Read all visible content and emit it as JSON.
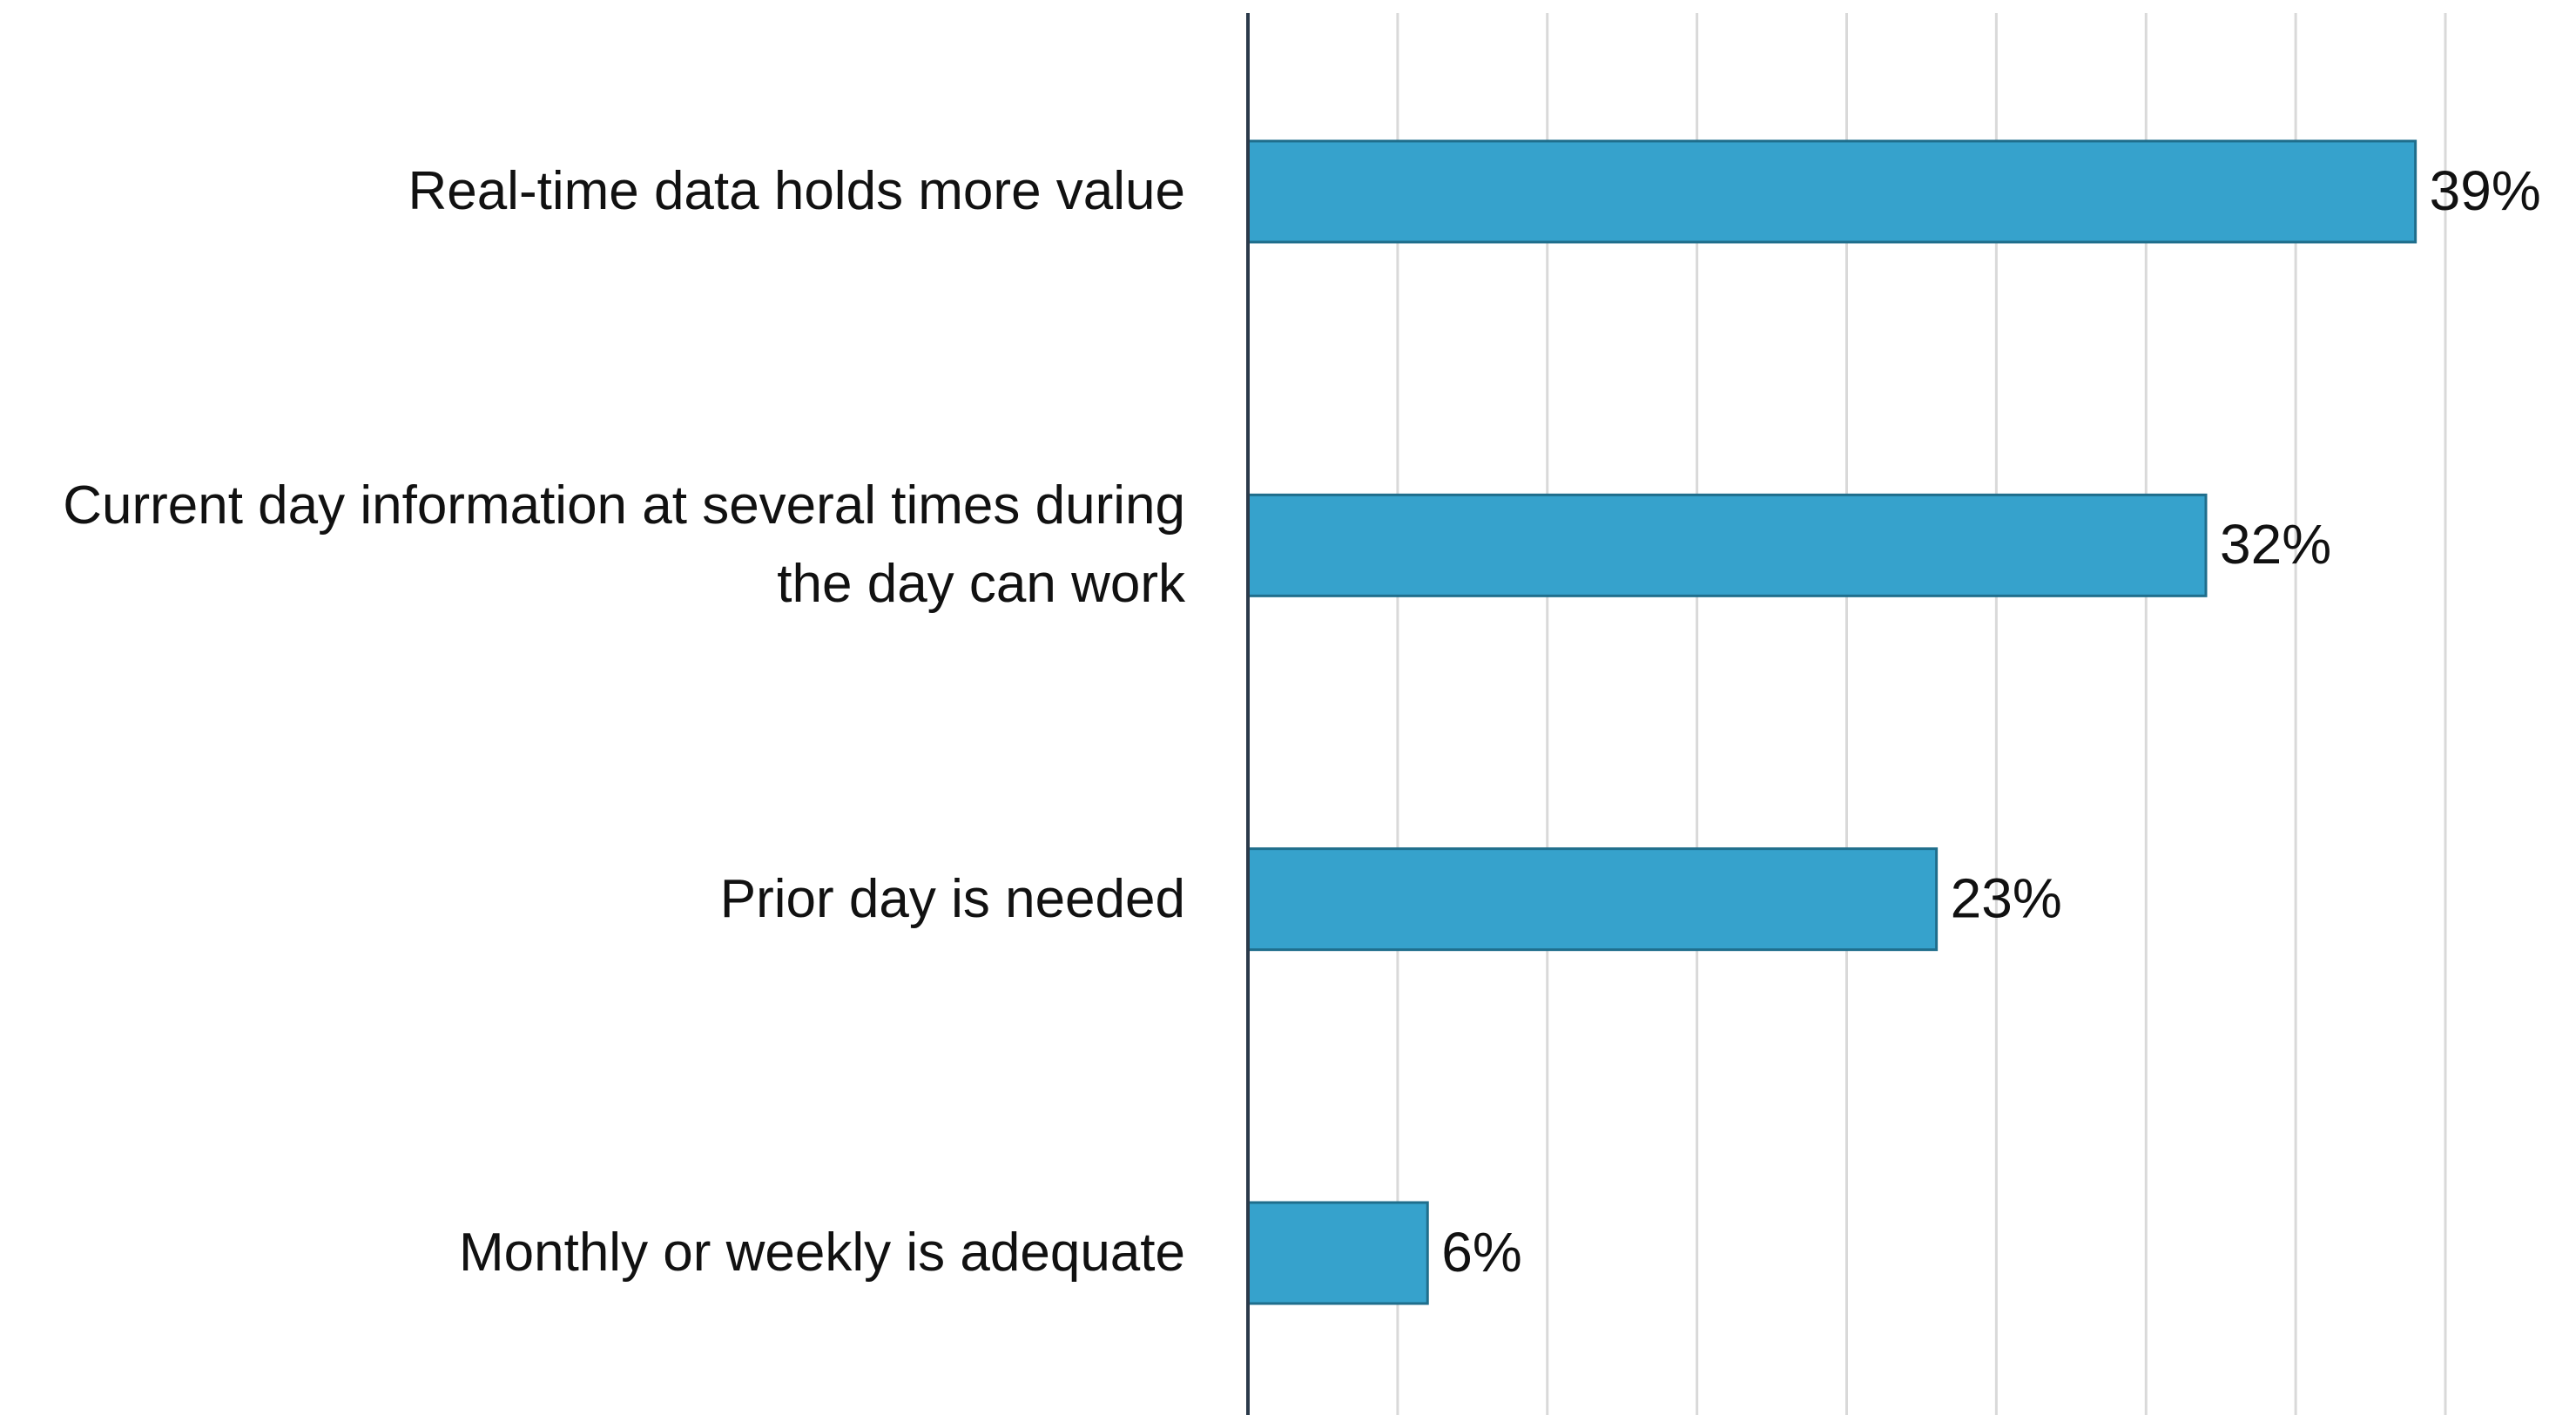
{
  "chart_data": {
    "type": "bar",
    "orientation": "horizontal",
    "categories": [
      "Real-time data holds more value",
      "Current day information at several times during the day can work",
      "Prior day is needed",
      "Monthly or weekly is adequate"
    ],
    "values": [
      39,
      32,
      23,
      6
    ],
    "value_labels": [
      "39%",
      "32%",
      "23%",
      "6%"
    ],
    "color": "#36a2cc",
    "xlim": [
      0,
      40
    ],
    "xticks": [
      0,
      5,
      10,
      15,
      20,
      25,
      30,
      35,
      40
    ],
    "grid": true
  }
}
